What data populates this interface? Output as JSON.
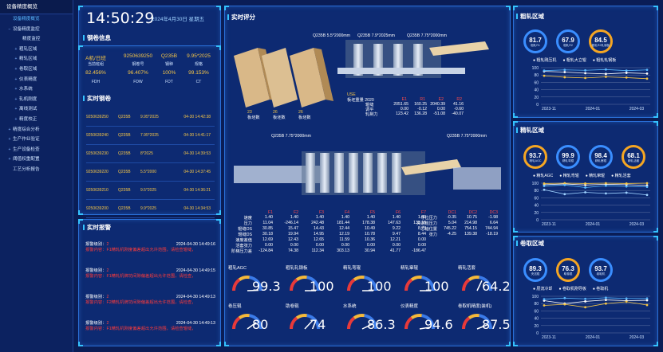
{
  "sidebar": {
    "title": "设备精度概览",
    "items": [
      {
        "label": "设备精度概览",
        "toggle": "",
        "indent": 8,
        "active": true
      },
      {
        "label": "设备精度监控",
        "toggle": "−",
        "indent": 8,
        "active": false
      },
      {
        "label": "精度监控",
        "toggle": "",
        "indent": 20,
        "active": false
      },
      {
        "label": "粗轧区域",
        "toggle": "+",
        "indent": 16,
        "active": false
      },
      {
        "label": "精轧区域",
        "toggle": "+",
        "indent": 16,
        "active": false
      },
      {
        "label": "卷取区域",
        "toggle": "+",
        "indent": 16,
        "active": false
      },
      {
        "label": "仪表精度",
        "toggle": "+",
        "indent": 16,
        "active": false
      },
      {
        "label": "水系统",
        "toggle": "+",
        "indent": 16,
        "active": false
      },
      {
        "label": "轧机刚度",
        "toggle": "+",
        "indent": 16,
        "active": false
      },
      {
        "label": "离线测试",
        "toggle": "+",
        "indent": 16,
        "active": false
      },
      {
        "label": "精度校正",
        "toggle": "+",
        "indent": 16,
        "active": false
      },
      {
        "label": "精度综合分析",
        "toggle": "+",
        "indent": 8,
        "active": false
      },
      {
        "label": "生产作业验证",
        "toggle": "+",
        "indent": 8,
        "active": false
      },
      {
        "label": "生产设备检查",
        "toggle": "+",
        "indent": 8,
        "active": false
      },
      {
        "label": "阈值权重配置",
        "toggle": "+",
        "indent": 8,
        "active": false
      },
      {
        "label": "工艺分析报告",
        "toggle": "",
        "indent": 8,
        "active": false
      }
    ]
  },
  "clock": {
    "time": "14:50:29",
    "date": "2024年4月30日 星期五"
  },
  "roll_info": {
    "title": "钢卷信息",
    "row1": [
      "A机/日班",
      "9250639250",
      "Q235B",
      "9.95*2025"
    ],
    "row1_labels": [
      "当前班组",
      "钢卷号",
      "钢种",
      "规格"
    ],
    "row2": [
      "82.456%",
      "96.407%",
      "100%",
      "99.153%"
    ],
    "row2_labels": [
      "FDH",
      "FDW",
      "FDT",
      "CT"
    ]
  },
  "realtime_coils": {
    "title": "实时钢卷",
    "rows": [
      [
        "9250639250",
        "Q235B",
        "9.95*2025",
        "04-30 14:42:38"
      ],
      [
        "9250639240",
        "Q235B",
        "7.95*2025",
        "04-30 14:41:17"
      ],
      [
        "9250639230",
        "Q235B",
        "8*2025",
        "04-30 14:39:53"
      ],
      [
        "9250639220",
        "Q235B",
        "5.5*2000",
        "04-30 14:37:45"
      ],
      [
        "9250639210",
        "Q235B",
        "9.5*2025",
        "04-30 14:36:21"
      ],
      [
        "9250639200",
        "Q235B",
        "9.9*2025",
        "04-30 14:34:53"
      ]
    ]
  },
  "alarms": {
    "title": "实时报警",
    "items": [
      {
        "level_label": "报警级别：",
        "level": "2",
        "time": "2024-04-30 14:49:16",
        "content": "报警内容：F1精轧机刚度偏差超出允许范围，请检查辊缝，"
      },
      {
        "level_label": "报警级别：",
        "level": "2",
        "time": "2024-04-30 14:49:15",
        "content": "报警内容：F1精轧机牌坊间隙偏差超出允许范围，请检查，"
      },
      {
        "level_label": "报警级别：",
        "level": "2",
        "time": "2024-04-30 14:49:13",
        "content": "报警内容：F2精轧机牌坊间隙偏差超出允许范围，请检查，"
      },
      {
        "level_label": "报警级别：",
        "level": "2",
        "time": "2024-04-30 14:49:13",
        "content": "报警内容：F1精轧机刚度偏差超出允许范围，请检查辊缝，"
      }
    ]
  },
  "realtime_score": {
    "title": "实时评分",
    "top_specs": [
      "Q235B 5.5*2000mm",
      "Q235B 7.9*2025mm",
      "Q235B 7.75*2000mm"
    ],
    "furnace": [
      {
        "v": "23",
        "l": "板坯数"
      },
      {
        "v": "26",
        "l": "板坯数"
      },
      {
        "v": "26",
        "l": "板坯数"
      }
    ],
    "use_label": "USE",
    "use_sub": "板坯重量 2020",
    "rough_table": {
      "cols": [
        "E1",
        "R1",
        "E2",
        "R2"
      ],
      "rows": [
        [
          "辊缝",
          "2051.65",
          "160.25",
          "2040.39",
          "41.16"
        ],
        [
          "调平",
          "0.00",
          "-0.12",
          "0.00",
          "-0.60"
        ],
        [
          "轧制力",
          "123.42",
          "136.28",
          "-51.08",
          "-40.07"
        ]
      ]
    },
    "mid_specs": [
      "Q235B 7.75*2000mm",
      "Q235B 7.75*2000mm"
    ],
    "finish_table": {
      "cols": [
        "F1",
        "F2",
        "F3",
        "F4",
        "F5",
        "F6",
        "F7"
      ],
      "rows": [
        [
          "速度",
          "1.40",
          "1.40",
          "1.40",
          "1.40",
          "1.40",
          "1.40",
          "1.40"
        ],
        [
          "压力",
          "11.04",
          "-246.14",
          "242.48",
          "181.44",
          "178.38",
          "147.63",
          "133.15"
        ],
        [
          "辊缝OS",
          "30.85",
          "15.47",
          "14.43",
          "12.44",
          "10.49",
          "9.22",
          "8.73"
        ],
        [
          "辊缝DS",
          "30.18",
          "19.94",
          "14.95",
          "12.19",
          "10.78",
          "9.47",
          "8.44"
        ],
        [
          "速度差值",
          "12.69",
          "12.43",
          "12.65",
          "11.59",
          "10.36",
          "12.21",
          "0.00"
        ],
        [
          "活套张力",
          "0.00",
          "0.00",
          "0.00",
          "0.00",
          "0.00",
          "0.00",
          "0.00"
        ],
        [
          "阶梯压力差",
          "-124.84",
          "74.38",
          "112.34",
          "303.13",
          "30.94",
          "41.77",
          "-186.47"
        ]
      ]
    },
    "coiler_table": {
      "cols": [
        "DC1",
        "DC2",
        "DC3"
      ],
      "rows": [
        [
          "导位压力",
          "-0.35",
          "10.75",
          "-1.98"
        ],
        [
          "夹送辊压力",
          "5.04",
          "214.98",
          "6.64"
        ],
        [
          "芯轴位置",
          "745.22",
          "754.15",
          "744.94"
        ],
        [
          "张力",
          "-4.25",
          "139.38",
          "-18.19"
        ]
      ]
    },
    "gauges": [
      {
        "label": "粗轧AGC",
        "value": "99.3",
        "frac": 0.99
      },
      {
        "label": "粗轧轧钢板",
        "value": "100",
        "frac": 1
      },
      {
        "label": "精轧弯辊",
        "value": "100",
        "frac": 1
      },
      {
        "label": "精轧窜辊",
        "value": "100",
        "frac": 1
      },
      {
        "label": "精轧活套",
        "value": "64.2",
        "frac": 0.64
      },
      {
        "label": "卷压辊",
        "value": "80",
        "frac": 0.8
      },
      {
        "label": "助卷辊",
        "value": "74",
        "frac": 0.74
      },
      {
        "label": "水系统",
        "value": "86.3",
        "frac": 0.86
      },
      {
        "label": "仪表精度",
        "value": "94.6",
        "frac": 0.95
      },
      {
        "label": "卷取机精度(装机)",
        "value": "87.5",
        "frac": 0.88
      }
    ]
  },
  "rough_area": {
    "title": "粗轧区域",
    "rings": [
      {
        "v": "81.7",
        "n": "粗轧R1"
      },
      {
        "v": "67.9",
        "n": "粗轧R2"
      },
      {
        "v": "84.5",
        "n": "粗轧R2轧钢板"
      }
    ],
    "legend": [
      "粗轧刚压机",
      "粗轧大立辊",
      "粗轧轧钢板"
    ],
    "yticks": [
      "100",
      "80",
      "60",
      "40",
      "20",
      "0"
    ],
    "xticks": [
      "2023-11",
      "2024-01",
      "2024-03"
    ]
  },
  "finish_area": {
    "title": "精轧区域",
    "rings": [
      {
        "v": "93.7",
        "n": "精轧AGC"
      },
      {
        "v": "99.9",
        "n": "精轧弯辊"
      },
      {
        "v": "98.4",
        "n": "精轧窜辊"
      },
      {
        "v": "68.1",
        "n": "精轧活套"
      }
    ],
    "legend": [
      "精轧AGC",
      "精轧弯辊",
      "精轧窜辊",
      "精轧活套"
    ],
    "yticks": [
      "100",
      "80",
      "60",
      "40",
      "20",
      "0"
    ],
    "xticks": [
      "2023-11",
      "2024-01",
      "2024-03"
    ]
  },
  "coil_area": {
    "title": "卷取区域",
    "rings": [
      {
        "v": "89.3",
        "n": "夹送辊"
      },
      {
        "v": "76.3",
        "n": "助卷辊"
      },
      {
        "v": "93.7",
        "n": "卷取机"
      }
    ],
    "legend": [
      "层流冷却",
      "卷取机刚导板",
      "卷取机"
    ],
    "yticks": [
      "100",
      "80",
      "60",
      "40",
      "20",
      "0"
    ],
    "xticks": [
      "2023-11",
      "2024-01",
      "2024-03"
    ]
  },
  "chart_data": [
    {
      "type": "line",
      "title": "粗轧区域",
      "x": [
        "2023-11",
        "2023-12",
        "2024-01",
        "2024-02",
        "2024-03",
        "2024-04"
      ],
      "series": [
        {
          "name": "粗轧刚压机",
          "values": [
            90,
            88,
            85,
            83,
            86,
            84
          ]
        },
        {
          "name": "粗轧大立辊",
          "values": [
            78,
            74,
            72,
            75,
            73,
            70
          ]
        },
        {
          "name": "粗轧轧钢板",
          "values": [
            92,
            94,
            93,
            95,
            92,
            94
          ]
        }
      ],
      "ylim": [
        0,
        100
      ]
    },
    {
      "type": "line",
      "title": "精轧区域",
      "x": [
        "2023-11",
        "2023-12",
        "2024-01",
        "2024-02",
        "2024-03",
        "2024-04"
      ],
      "series": [
        {
          "name": "精轧AGC",
          "values": [
            96,
            98,
            95,
            97,
            96,
            94
          ]
        },
        {
          "name": "精轧弯辊",
          "values": [
            99,
            100,
            99,
            100,
            99,
            100
          ]
        },
        {
          "name": "精轧窜辊",
          "values": [
            92,
            95,
            88,
            93,
            91,
            90
          ]
        },
        {
          "name": "精轧活套",
          "values": [
            82,
            70,
            75,
            72,
            74,
            68
          ]
        }
      ],
      "ylim": [
        0,
        100
      ]
    },
    {
      "type": "line",
      "title": "卷取区域",
      "x": [
        "2023-11",
        "2023-12",
        "2024-01",
        "2024-02",
        "2024-03",
        "2024-04"
      ],
      "series": [
        {
          "name": "层流冷却",
          "values": [
            88,
            80,
            86,
            90,
            88,
            89
          ]
        },
        {
          "name": "卷取机刚导板",
          "values": [
            75,
            78,
            70,
            80,
            85,
            76
          ]
        },
        {
          "name": "卷取机",
          "values": [
            92,
            95,
            93,
            96,
            94,
            94
          ]
        }
      ],
      "ylim": [
        0,
        100
      ]
    }
  ]
}
